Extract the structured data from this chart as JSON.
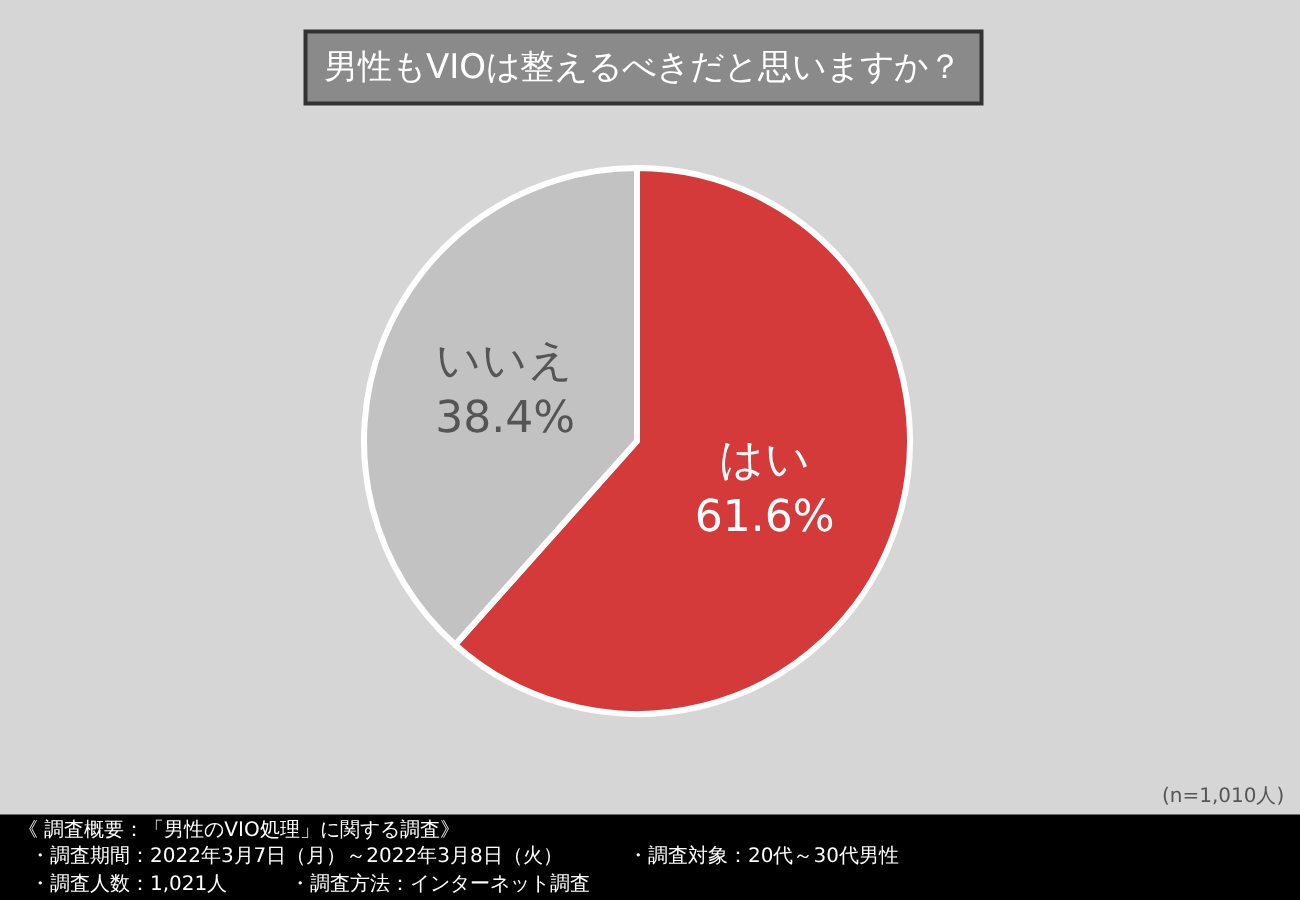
{
  "chart_data": {
    "type": "pie",
    "title": "男性もVIOは整えるべきだと思いますか？",
    "categories": [
      "はい",
      "いいえ"
    ],
    "values": [
      61.6,
      38.4
    ],
    "colors": [
      "#d43a3a",
      "#c2c2c2"
    ],
    "value_labels": [
      "61.6%",
      "38.4%"
    ],
    "legend": false,
    "annotations": [
      "(n=1,010人)",
      "《 調査概要：「男性のVIO処理」に関する調査》",
      "・調査期間：2022年3月7日（月）～2022年3月8日（火）",
      "・調査人数：1,021人",
      "・調査方法：インターネット調査",
      "・調査対象：20代～30代男性"
    ]
  }
}
